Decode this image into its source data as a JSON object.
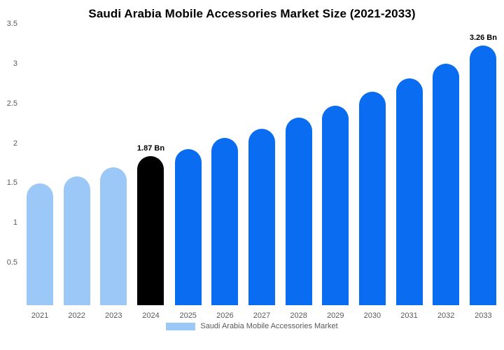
{
  "chart_data": {
    "type": "bar",
    "title": "Saudi Arabia Mobile Accessories Market Size (2021-2033)",
    "categories": [
      "2021",
      "2022",
      "2023",
      "2024",
      "2025",
      "2026",
      "2027",
      "2028",
      "2029",
      "2030",
      "2031",
      "2032",
      "2033"
    ],
    "values": [
      1.53,
      1.62,
      1.73,
      1.87,
      1.96,
      2.1,
      2.22,
      2.36,
      2.51,
      2.68,
      2.85,
      3.03,
      3.26
    ],
    "bar_value_labels": [
      "",
      "",
      "",
      "1.87 Bn",
      "",
      "",
      "",
      "",
      "",
      "",
      "",
      "",
      "3.26 Bn"
    ],
    "bar_colors": [
      "#9cc8f7",
      "#9cc8f7",
      "#9cc8f7",
      "#000000",
      "#0a6cf0",
      "#0a6cf0",
      "#0a6cf0",
      "#0a6cf0",
      "#0a6cf0",
      "#0a6cf0",
      "#0a6cf0",
      "#0a6cf0",
      "#0a6cf0"
    ],
    "units": "Bn",
    "ylim": [
      0,
      3.5
    ],
    "yticks": [
      0.5,
      1,
      1.5,
      2,
      2.5,
      3,
      3.5
    ],
    "ytick_labels": [
      "0.5",
      "1",
      "1.5",
      "2",
      "2.5",
      "3",
      "3.5"
    ],
    "grid": false,
    "xlabel": "",
    "ylabel": "",
    "legend_position": "bottom",
    "legend": [
      {
        "label": "Saudi Arabia Mobile Accessories Market",
        "color": "#9cc8f7"
      }
    ]
  }
}
